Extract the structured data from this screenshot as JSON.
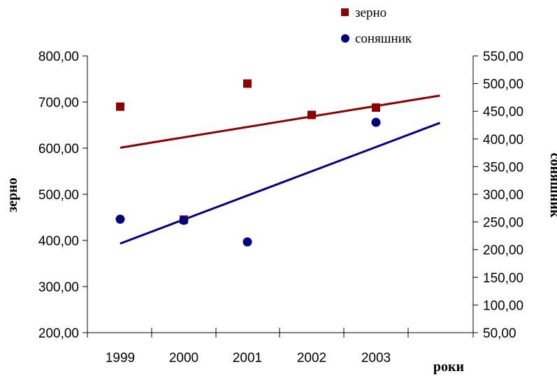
{
  "chart_data": {
    "type": "scatter",
    "title": "",
    "x": [
      "1999",
      "2000",
      "2001",
      "2002",
      "2003"
    ],
    "xlabel": "роки",
    "y_left_label": "зерно",
    "y_right_label": "соняшник",
    "y_left_lim": [
      200,
      800
    ],
    "y_right_lim": [
      50,
      550
    ],
    "y_left_ticks": [
      "200,00",
      "300,00",
      "400,00",
      "500,00",
      "600,00",
      "700,00",
      "800,00"
    ],
    "y_right_ticks": [
      "50,00",
      "100,00",
      "150,00",
      "200,00",
      "250,00",
      "300,00",
      "350,00",
      "400,00",
      "450,00",
      "500,00",
      "550,00"
    ],
    "grid": false,
    "legend_position": "top-right",
    "series": [
      {
        "name": "зерно",
        "axis": "left",
        "marker": "square",
        "color": "#8B0000",
        "values": [
          690,
          445,
          740,
          672,
          688
        ],
        "trendline": {
          "start": [
            1999,
            601
          ],
          "end": [
            2004,
            714
          ]
        }
      },
      {
        "name": "соняшник",
        "axis": "right",
        "marker": "circle",
        "color": "#00007F",
        "values": [
          255,
          253,
          214,
          null,
          430
        ],
        "trendline": {
          "start": [
            1999,
            211
          ],
          "end": [
            2004,
            429
          ]
        }
      }
    ]
  }
}
